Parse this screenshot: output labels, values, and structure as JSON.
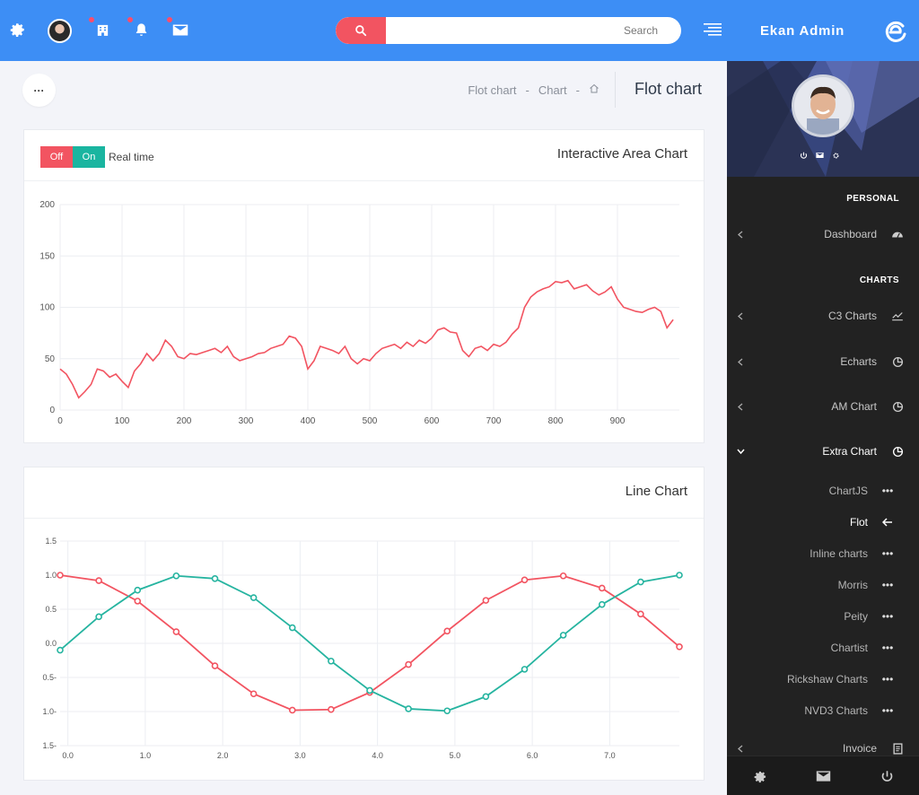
{
  "topbar": {
    "search_placeholder": "Search",
    "brand": "Ekan Admin"
  },
  "page": {
    "breadcrumb": [
      "Flot chart",
      "Chart"
    ],
    "breadcrumb_sep": "-",
    "title": "Flot chart",
    "more_label": "···"
  },
  "area_card": {
    "title": "Interactive Area Chart",
    "toggle_off": "Off",
    "toggle_on": "On",
    "toggle_label": "Real time"
  },
  "line_card": {
    "title": "Line Chart"
  },
  "chart_data": [
    {
      "type": "line",
      "title": "Interactive Area Chart",
      "xlim": [
        0,
        1000
      ],
      "ylim": [
        0,
        200
      ],
      "xticks": [
        0,
        100,
        200,
        300,
        400,
        500,
        600,
        700,
        800,
        900
      ],
      "yticks": [
        0,
        50,
        100,
        150,
        200
      ],
      "xtick_labels": [
        "0",
        "100",
        "200",
        "300",
        "400",
        "500",
        "600",
        "700",
        "800",
        "900"
      ],
      "ytick_labels": [
        "0",
        "50",
        "100",
        "150",
        "200"
      ],
      "grid": true,
      "color": "#f25461",
      "x": [
        0,
        10,
        20,
        30,
        40,
        50,
        60,
        70,
        80,
        90,
        100,
        110,
        120,
        130,
        140,
        150,
        160,
        170,
        180,
        190,
        200,
        210,
        220,
        230,
        240,
        250,
        260,
        270,
        280,
        290,
        300,
        310,
        320,
        330,
        340,
        350,
        360,
        370,
        380,
        390,
        400,
        410,
        420,
        430,
        440,
        450,
        460,
        470,
        480,
        490,
        500,
        510,
        520,
        530,
        540,
        550,
        560,
        570,
        580,
        590,
        600,
        610,
        620,
        630,
        640,
        650,
        660,
        670,
        680,
        690,
        700,
        710,
        720,
        730,
        740,
        750,
        760,
        770,
        780,
        790,
        800,
        810,
        820,
        830,
        840,
        850,
        860,
        870,
        880,
        890,
        900,
        910,
        920,
        930,
        940,
        950,
        960,
        970,
        980,
        990
      ],
      "y": [
        40,
        35,
        25,
        12,
        18,
        25,
        40,
        38,
        32,
        35,
        28,
        22,
        38,
        45,
        55,
        48,
        55,
        68,
        62,
        52,
        50,
        55,
        54,
        56,
        58,
        60,
        56,
        62,
        52,
        48,
        50,
        52,
        55,
        56,
        60,
        62,
        64,
        72,
        70,
        62,
        40,
        48,
        62,
        60,
        58,
        55,
        62,
        50,
        45,
        50,
        48,
        55,
        60,
        62,
        64,
        60,
        66,
        62,
        68,
        65,
        70,
        78,
        80,
        76,
        75,
        58,
        52,
        60,
        62,
        58,
        64,
        62,
        66,
        74,
        80,
        100,
        110,
        115,
        118,
        120,
        125,
        124,
        126,
        118,
        120,
        122,
        116,
        112,
        115,
        120,
        108,
        100,
        98,
        96,
        95,
        98,
        100,
        96,
        80,
        88
      ]
    },
    {
      "type": "line",
      "title": "Line Chart",
      "xlim": [
        -0.1,
        7.9
      ],
      "ylim": [
        -1.5,
        1.5
      ],
      "xticks": [
        0,
        1,
        2,
        3,
        4,
        5,
        6,
        7
      ],
      "yticks": [
        1.5,
        1.0,
        0.5,
        0.0,
        -0.5,
        -1.0,
        -1.5
      ],
      "xtick_labels": [
        "0.0",
        "1.0",
        "2.0",
        "3.0",
        "4.0",
        "5.0",
        "6.0",
        "7.0"
      ],
      "ytick_labels": [
        "1.5",
        "1.0",
        "0.5",
        "0.0",
        "0.5-",
        "1.0-",
        "1.5-"
      ],
      "grid": true,
      "x": [
        -0.1,
        0.4,
        0.9,
        1.4,
        1.9,
        2.4,
        2.9,
        3.4,
        3.9,
        4.4,
        4.9,
        5.4,
        5.9,
        6.4,
        6.9,
        7.4,
        7.9
      ],
      "series": [
        {
          "color": "#f25461",
          "values": [
            1.0,
            0.92,
            0.62,
            0.17,
            -0.33,
            -0.74,
            -0.98,
            -0.97,
            -0.72,
            -0.31,
            0.18,
            0.63,
            0.93,
            0.99,
            0.81,
            0.43,
            -0.05
          ]
        },
        {
          "color": "#26b4a0",
          "values": [
            -0.1,
            0.39,
            0.78,
            0.99,
            0.95,
            0.67,
            0.23,
            -0.26,
            -0.69,
            -0.96,
            -0.99,
            -0.78,
            -0.38,
            0.12,
            0.57,
            0.9,
            1.0
          ]
        }
      ]
    }
  ],
  "sidebar": {
    "sections": [
      "PERSONAL",
      "CHARTS"
    ],
    "items": [
      {
        "label": "Dashboard",
        "icon": "gauge-icon"
      },
      {
        "label": "C3 Charts",
        "icon": "line-chart-icon"
      },
      {
        "label": "Echarts",
        "icon": "pie-chart-icon"
      },
      {
        "label": "AM Chart",
        "icon": "pie-chart-icon"
      },
      {
        "label": "Extra Chart",
        "icon": "pie-chart-icon"
      },
      {
        "label": "Invoice",
        "icon": "document-icon"
      }
    ],
    "subitems": [
      {
        "label": "ChartJS",
        "icon": "more-icon"
      },
      {
        "label": "Flot",
        "icon": "arrow-left-icon"
      },
      {
        "label": "Inline charts",
        "icon": "more-icon"
      },
      {
        "label": "Morris",
        "icon": "more-icon"
      },
      {
        "label": "Peity",
        "icon": "more-icon"
      },
      {
        "label": "Chartist",
        "icon": "more-icon"
      },
      {
        "label": "Rickshaw Charts",
        "icon": "more-icon"
      },
      {
        "label": "NVD3 Charts",
        "icon": "more-icon"
      }
    ]
  },
  "colors": {
    "primary": "#3d8ef5",
    "accent": "#f25461",
    "teal": "#26b4a0",
    "sidebar": "#222222"
  }
}
